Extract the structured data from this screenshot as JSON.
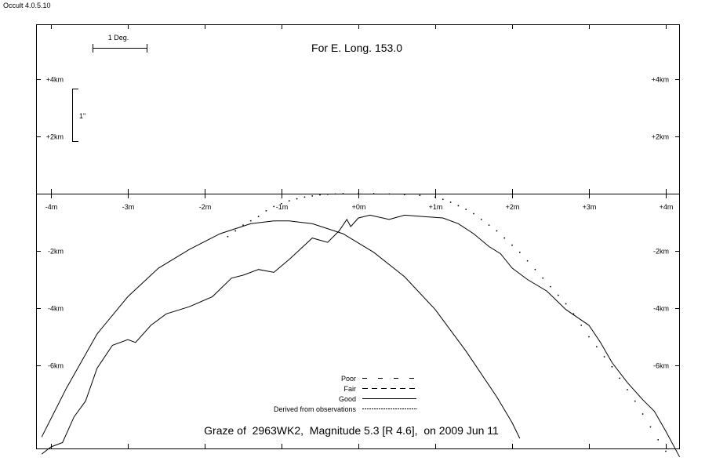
{
  "app": {
    "title": "Occult 4.0.5.10"
  },
  "header": {
    "longitude_label": "For E. Long. 153.0"
  },
  "scale": {
    "degree_label": "1 Deg.",
    "arcsec_label": "1\""
  },
  "footer": {
    "caption": "Graze of  2963WK2,  Magnitude 5.3 [R 4.6],  on 2009 Jun 11"
  },
  "legend": [
    {
      "label": "Poor",
      "style": "poor"
    },
    {
      "label": "Fair",
      "style": "fair"
    },
    {
      "label": "Good",
      "style": "good"
    },
    {
      "label": "Derived from observations",
      "style": "derived"
    }
  ],
  "chart_data": {
    "type": "line",
    "x_axis": {
      "unit": "minutes",
      "range": [
        -4,
        4
      ],
      "ticks": [
        -4,
        -3,
        -2,
        -1,
        0,
        1,
        2,
        3,
        4
      ],
      "tick_labels": [
        "-4m",
        "-3m",
        "-2m",
        "-1m",
        "+0m",
        "+1m",
        "+2m",
        "+3m",
        "+4m"
      ]
    },
    "y_axis": {
      "unit": "km",
      "range": [
        -9,
        6
      ],
      "upper_ticks": [
        4,
        2
      ],
      "upper_tick_labels": [
        "+4km",
        "+2km"
      ],
      "lower_ticks": [
        -2,
        -4,
        -6
      ],
      "lower_tick_labels": [
        "-2km",
        "-4km",
        "-6km"
      ]
    },
    "series": [
      {
        "style": "dotted",
        "points": [
          [
            -1.7,
            -1.5
          ],
          [
            -1.6,
            -1.3
          ],
          [
            -1.5,
            -1.1
          ],
          [
            -1.4,
            -0.95
          ],
          [
            -1.3,
            -0.8
          ],
          [
            -1.2,
            -0.6
          ],
          [
            -1.1,
            -0.45
          ],
          [
            -1.0,
            -0.35
          ],
          [
            -0.9,
            -0.25
          ],
          [
            -0.8,
            -0.18
          ],
          [
            -0.7,
            -0.12
          ],
          [
            -0.6,
            -0.08
          ],
          [
            -0.5,
            -0.04
          ],
          [
            -0.4,
            -0.02
          ],
          [
            -0.3,
            -0.01
          ],
          [
            -0.2,
            0.0
          ],
          [
            0.0,
            0.0
          ],
          [
            0.2,
            0.0
          ],
          [
            0.4,
            -0.01
          ],
          [
            0.6,
            -0.03
          ],
          [
            0.8,
            -0.06
          ],
          [
            1.0,
            -0.12
          ],
          [
            1.1,
            -0.2
          ],
          [
            1.2,
            -0.3
          ],
          [
            1.3,
            -0.42
          ],
          [
            1.4,
            -0.55
          ],
          [
            1.5,
            -0.7
          ],
          [
            1.6,
            -0.9
          ],
          [
            1.7,
            -1.1
          ],
          [
            1.8,
            -1.3
          ],
          [
            1.9,
            -1.55
          ],
          [
            2.0,
            -1.8
          ],
          [
            2.1,
            -2.05
          ],
          [
            2.2,
            -2.35
          ],
          [
            2.3,
            -2.65
          ],
          [
            2.4,
            -2.95
          ],
          [
            2.5,
            -3.25
          ],
          [
            2.6,
            -3.55
          ],
          [
            2.7,
            -3.85
          ],
          [
            2.8,
            -4.2
          ],
          [
            2.9,
            -4.6
          ],
          [
            3.0,
            -5.0
          ],
          [
            3.1,
            -5.35
          ],
          [
            3.2,
            -5.7
          ],
          [
            3.3,
            -6.05
          ],
          [
            3.4,
            -6.45
          ],
          [
            3.5,
            -6.85
          ],
          [
            3.6,
            -7.25
          ],
          [
            3.7,
            -7.7
          ],
          [
            3.8,
            -8.15
          ],
          [
            3.9,
            -8.6
          ],
          [
            4.0,
            -9.0
          ]
        ]
      },
      {
        "style": "solid",
        "points": [
          [
            -4.12,
            -8.5
          ],
          [
            -3.8,
            -6.8
          ],
          [
            -3.4,
            -4.9
          ],
          [
            -3.0,
            -3.6
          ],
          [
            -2.6,
            -2.6
          ],
          [
            -2.2,
            -1.95
          ],
          [
            -1.8,
            -1.4
          ],
          [
            -1.4,
            -1.05
          ],
          [
            -1.1,
            -0.95
          ],
          [
            -0.9,
            -0.95
          ],
          [
            -0.6,
            -1.05
          ],
          [
            -0.2,
            -1.4
          ],
          [
            0.2,
            -2.05
          ],
          [
            0.6,
            -2.9
          ],
          [
            1.0,
            -4.05
          ],
          [
            1.4,
            -5.5
          ],
          [
            1.8,
            -7.1
          ],
          [
            2.0,
            -8.0
          ],
          [
            2.1,
            -8.55
          ]
        ]
      },
      {
        "style": "solid",
        "points": [
          [
            -4.12,
            -9.1
          ],
          [
            -4.0,
            -8.85
          ],
          [
            -3.85,
            -8.7
          ],
          [
            -3.7,
            -7.8
          ],
          [
            -3.55,
            -7.25
          ],
          [
            -3.4,
            -6.1
          ],
          [
            -3.2,
            -5.3
          ],
          [
            -3.0,
            -5.1
          ],
          [
            -2.9,
            -5.2
          ],
          [
            -2.7,
            -4.6
          ],
          [
            -2.5,
            -4.2
          ],
          [
            -2.2,
            -3.95
          ],
          [
            -1.9,
            -3.6
          ],
          [
            -1.65,
            -2.95
          ],
          [
            -1.5,
            -2.85
          ],
          [
            -1.3,
            -2.65
          ],
          [
            -1.1,
            -2.75
          ],
          [
            -0.9,
            -2.3
          ],
          [
            -0.6,
            -1.55
          ],
          [
            -0.4,
            -1.7
          ],
          [
            -0.25,
            -1.3
          ],
          [
            -0.15,
            -0.9
          ],
          [
            -0.1,
            -1.15
          ],
          [
            0.0,
            -0.85
          ],
          [
            0.15,
            -0.75
          ],
          [
            0.4,
            -0.9
          ],
          [
            0.6,
            -0.75
          ],
          [
            0.85,
            -0.8
          ],
          [
            1.1,
            -0.85
          ],
          [
            1.3,
            -1.05
          ],
          [
            1.5,
            -1.4
          ],
          [
            1.7,
            -1.85
          ],
          [
            1.85,
            -2.1
          ],
          [
            2.0,
            -2.6
          ],
          [
            2.2,
            -3.0
          ],
          [
            2.45,
            -3.4
          ],
          [
            2.7,
            -4.05
          ],
          [
            3.0,
            -4.6
          ],
          [
            3.15,
            -5.2
          ],
          [
            3.3,
            -5.9
          ],
          [
            3.5,
            -6.6
          ],
          [
            3.7,
            -7.2
          ],
          [
            3.85,
            -7.6
          ],
          [
            4.0,
            -8.3
          ],
          [
            4.1,
            -8.8
          ],
          [
            4.18,
            -9.2
          ]
        ]
      }
    ]
  }
}
